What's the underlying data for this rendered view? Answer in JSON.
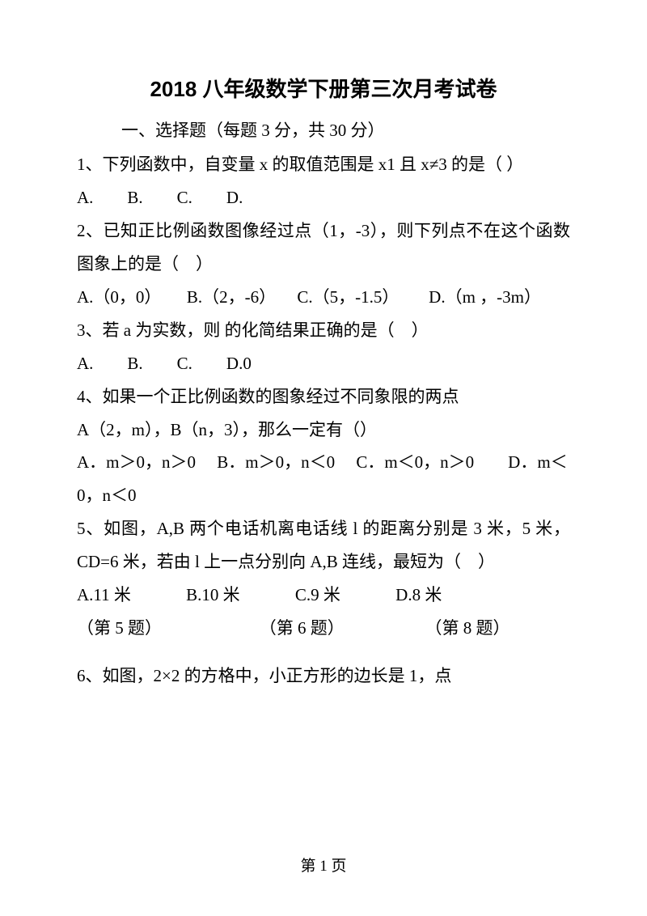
{
  "title": "2018 八年级数学下册第三次月考试卷",
  "section_header": "一、选择题（每题 3 分，共 30 分）",
  "q1": {
    "text": "1、下列函数中，自变量 x 的取值范围是 x1 且 x≠3 的是（ ）",
    "options": "A.　　B.　　C.　　D."
  },
  "q2": {
    "text": "2、已知正比例函数图像经过点（1，-3），则下列点不在这个函数图象上的是（　）",
    "options": "A.（0，0）　　B.（2，-6） 　C.（5，-1.5）　　 D.（m ，-3m）"
  },
  "q3": {
    "text": "3、若 a 为实数，则 的化简结果正确的是（　）",
    "options": "A.　　B.　　C.　　D.0"
  },
  "q4": {
    "text": "4、如果一个正比例函数的图象经过不同象限的两点",
    "text2": "A（2，m），B（n，3），那么一定有（）",
    "options": "A．m＞0，n＞0 　B．m＞0，n＜0 　C．m＜0，n＞0　　D．m＜0，n＜0"
  },
  "q5": {
    "text": "5、如图，A,B 两个电话机离电话线 l 的距离分别是 3 米，5 米，CD=6 米，若由 l 上一点分别向 A,B 连线，最短为（　）",
    "options": "A.11 米 　　　B.10 米 　　　C.9 米 　　　D.8 米"
  },
  "fig_labels": "（第 5 题） 　　　　　　（第 6 题） 　　　　　（第 8 题）",
  "q6": {
    "text": "6、如图，2×2 的方格中，小正方形的边长是 1，点"
  },
  "footer": "第 1 页"
}
